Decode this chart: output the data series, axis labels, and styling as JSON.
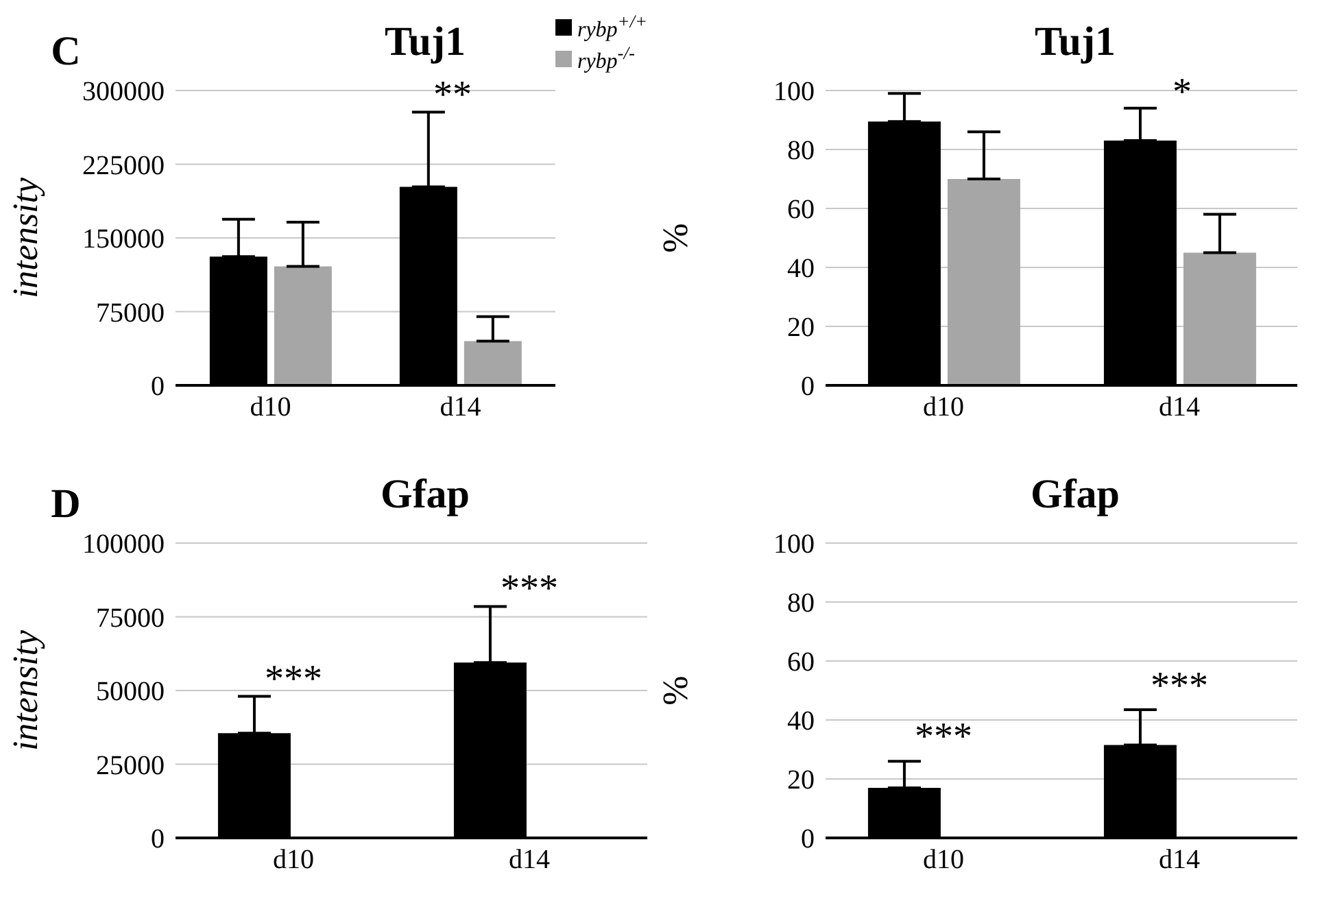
{
  "chart_data": [
    {
      "type": "bar",
      "title": "Tuj1",
      "ylabel": "intensity",
      "categories": [
        "d10",
        "d14"
      ],
      "ylim": [
        0,
        300000
      ],
      "yticks": [
        0,
        75000,
        150000,
        225000,
        300000
      ],
      "grid": "y",
      "legend": "top right",
      "annotations": [
        "C",
        "**"
      ],
      "series": [
        {
          "name": "rybp$^{+/+}$",
          "color": "#000000",
          "values": [
            131000,
            202000
          ],
          "errors": [
            [
              131000,
              169000
            ],
            [
              202000,
              278000
            ]
          ]
        },
        {
          "name": "rybp$^{-/-}$",
          "color": "#a6a6a6",
          "values": [
            121000,
            45000
          ],
          "errors": [
            [
              121000,
              166000
            ],
            [
              45000,
              70000
            ]
          ]
        }
      ]
    },
    {
      "type": "bar",
      "title": "Tuj1",
      "ylabel": "%",
      "categories": [
        "d10",
        "d14"
      ],
      "ylim": [
        0,
        100
      ],
      "yticks": [
        0,
        20,
        40,
        60,
        80,
        100
      ],
      "grid": "y",
      "annotations": [
        "*"
      ],
      "series": [
        {
          "color": "#000000",
          "values": [
            89.5,
            83
          ],
          "errors": [
            [
              89.5,
              99
            ],
            [
              83,
              94
            ]
          ]
        },
        {
          "color": "#a6a6a6",
          "values": [
            70,
            45
          ],
          "errors": [
            [
              70,
              86
            ],
            [
              45,
              58
            ]
          ]
        }
      ]
    },
    {
      "type": "bar",
      "title": "Gfap",
      "ylabel": "intensity",
      "categories": [
        "d10",
        "d14"
      ],
      "ylim": [
        0,
        100000
      ],
      "yticks": [
        0,
        25000,
        50000,
        75000,
        100000
      ],
      "grid": "y",
      "annotations": [
        "D",
        "***",
        "***"
      ],
      "series": [
        {
          "color": "#000000",
          "values": [
            35500,
            59500
          ],
          "errors": [
            [
              35500,
              48000
            ],
            [
              59500,
              78500
            ]
          ]
        },
        {
          "color": "#a6a6a6",
          "values": [
            0,
            0
          ]
        }
      ]
    },
    {
      "type": "bar",
      "title": "Gfap",
      "ylabel": "%",
      "categories": [
        "d10",
        "d14"
      ],
      "ylim": [
        0,
        100
      ],
      "yticks": [
        0,
        20,
        40,
        60,
        80,
        100
      ],
      "grid": "y",
      "annotations": [
        "***",
        "***"
      ],
      "series": [
        {
          "color": "#000000",
          "values": [
            17,
            31.5
          ],
          "errors": [
            [
              17,
              26
            ],
            [
              31.5,
              43.5
            ]
          ]
        },
        {
          "color": "#a6a6a6",
          "values": [
            0,
            0
          ]
        }
      ]
    }
  ]
}
